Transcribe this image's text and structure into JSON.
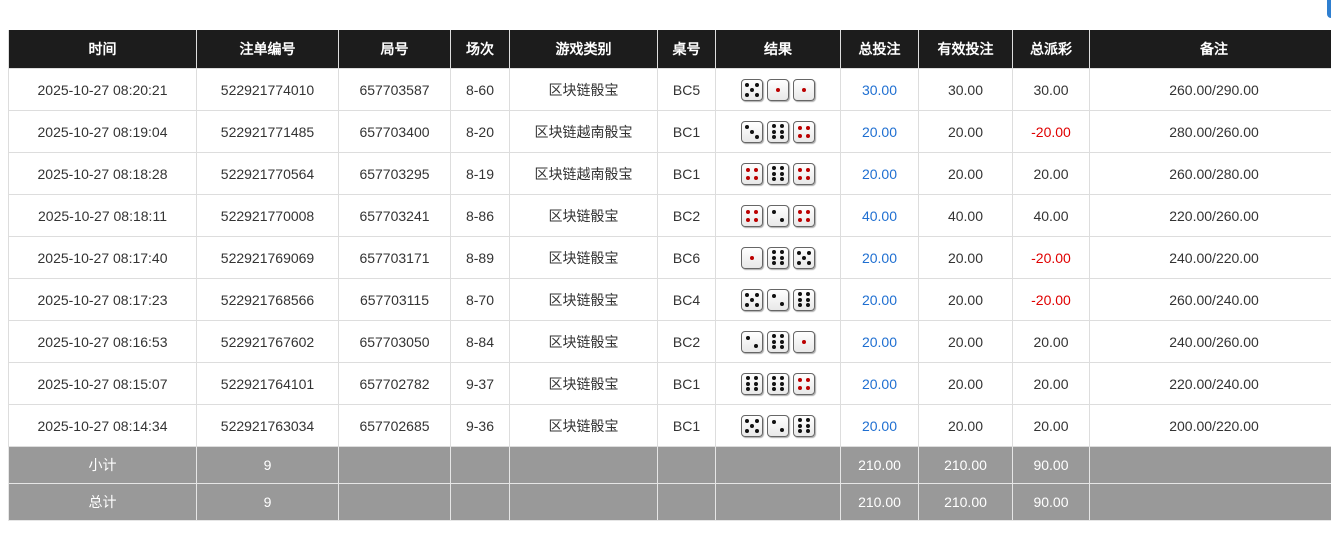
{
  "headers": [
    "时间",
    "注单编号",
    "局号",
    "场次",
    "游戏类别",
    "桌号",
    "结果",
    "总投注",
    "有效投注",
    "总派彩",
    "备注"
  ],
  "rows": [
    {
      "time": "2025-10-27 08:20:21",
      "bet_id": "522921774010",
      "round": "657703587",
      "session": "8-60",
      "game": "区块链骰宝",
      "table": "BC5",
      "dice": [
        5,
        1,
        1
      ],
      "total_bet": "30.00",
      "valid_bet": "30.00",
      "payout": "30.00",
      "note": "260.00/290.00"
    },
    {
      "time": "2025-10-27 08:19:04",
      "bet_id": "522921771485",
      "round": "657703400",
      "session": "8-20",
      "game": "区块链越南骰宝",
      "table": "BC1",
      "dice": [
        3,
        6,
        4
      ],
      "total_bet": "20.00",
      "valid_bet": "20.00",
      "payout": "-20.00",
      "note": "280.00/260.00"
    },
    {
      "time": "2025-10-27 08:18:28",
      "bet_id": "522921770564",
      "round": "657703295",
      "session": "8-19",
      "game": "区块链越南骰宝",
      "table": "BC1",
      "dice": [
        4,
        6,
        4
      ],
      "total_bet": "20.00",
      "valid_bet": "20.00",
      "payout": "20.00",
      "note": "260.00/280.00"
    },
    {
      "time": "2025-10-27 08:18:11",
      "bet_id": "522921770008",
      "round": "657703241",
      "session": "8-86",
      "game": "区块链骰宝",
      "table": "BC2",
      "dice": [
        4,
        2,
        4
      ],
      "total_bet": "40.00",
      "valid_bet": "40.00",
      "payout": "40.00",
      "note": "220.00/260.00"
    },
    {
      "time": "2025-10-27 08:17:40",
      "bet_id": "522921769069",
      "round": "657703171",
      "session": "8-89",
      "game": "区块链骰宝",
      "table": "BC6",
      "dice": [
        1,
        6,
        5
      ],
      "total_bet": "20.00",
      "valid_bet": "20.00",
      "payout": "-20.00",
      "note": "240.00/220.00"
    },
    {
      "time": "2025-10-27 08:17:23",
      "bet_id": "522921768566",
      "round": "657703115",
      "session": "8-70",
      "game": "区块链骰宝",
      "table": "BC4",
      "dice": [
        5,
        2,
        6
      ],
      "total_bet": "20.00",
      "valid_bet": "20.00",
      "payout": "-20.00",
      "note": "260.00/240.00"
    },
    {
      "time": "2025-10-27 08:16:53",
      "bet_id": "522921767602",
      "round": "657703050",
      "session": "8-84",
      "game": "区块链骰宝",
      "table": "BC2",
      "dice": [
        2,
        6,
        1
      ],
      "total_bet": "20.00",
      "valid_bet": "20.00",
      "payout": "20.00",
      "note": "240.00/260.00"
    },
    {
      "time": "2025-10-27 08:15:07",
      "bet_id": "522921764101",
      "round": "657702782",
      "session": "9-37",
      "game": "区块链骰宝",
      "table": "BC1",
      "dice": [
        6,
        6,
        4
      ],
      "total_bet": "20.00",
      "valid_bet": "20.00",
      "payout": "20.00",
      "note": "220.00/240.00"
    },
    {
      "time": "2025-10-27 08:14:34",
      "bet_id": "522921763034",
      "round": "657702685",
      "session": "9-36",
      "game": "区块链骰宝",
      "table": "BC1",
      "dice": [
        5,
        2,
        6
      ],
      "total_bet": "20.00",
      "valid_bet": "20.00",
      "payout": "20.00",
      "note": "200.00/220.00"
    }
  ],
  "summary": [
    {
      "label": "小计",
      "count": "9",
      "total_bet": "210.00",
      "valid_bet": "210.00",
      "payout": "90.00"
    },
    {
      "label": "总计",
      "count": "9",
      "total_bet": "210.00",
      "valid_bet": "210.00",
      "payout": "90.00"
    }
  ],
  "colors": {
    "header_bg": "#1c1c1c",
    "bet_link": "#1f6fd1",
    "negative": "#e00000",
    "summary_bg": "#999999"
  }
}
